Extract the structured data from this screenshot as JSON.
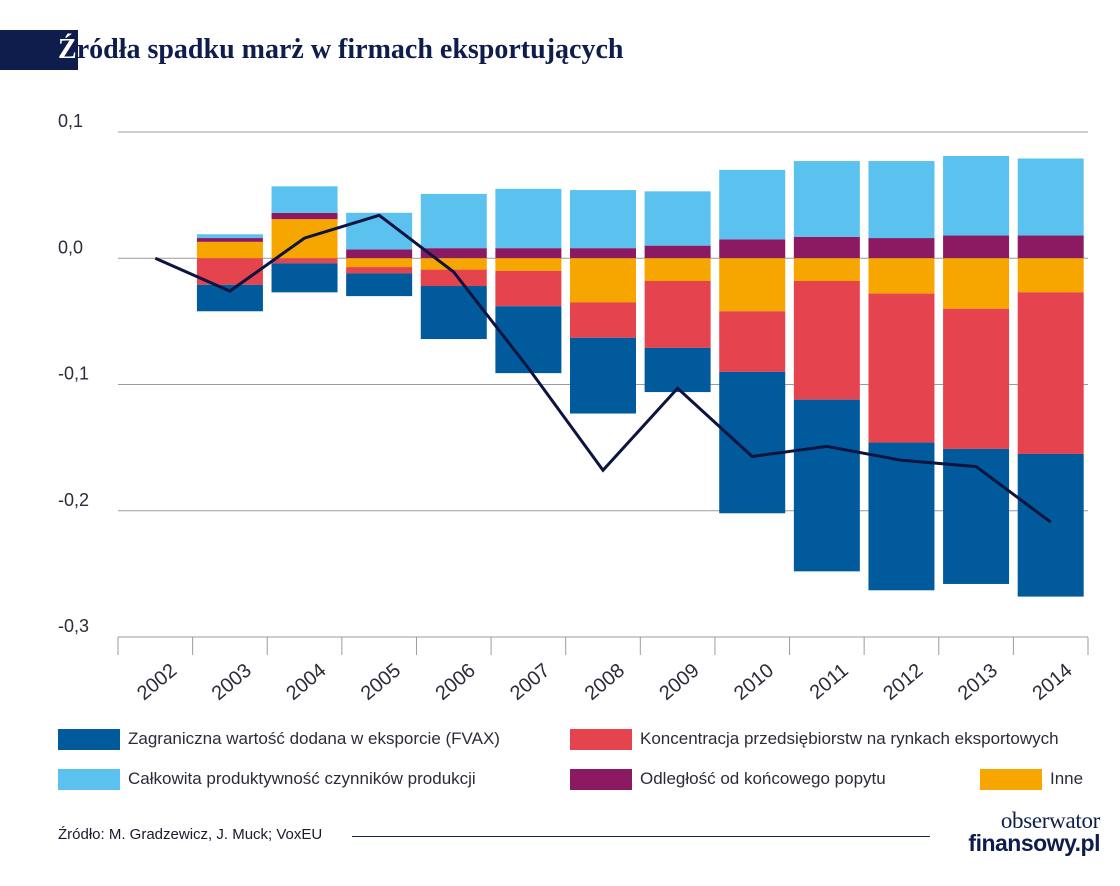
{
  "title": {
    "first_letter": "Ź",
    "rest": "ródła spadku marż w firmach eksportujących"
  },
  "chart_data": {
    "type": "bar",
    "stacked": true,
    "categories": [
      "2002",
      "2003",
      "2004",
      "2005",
      "2006",
      "2007",
      "2008",
      "2009",
      "2010",
      "2011",
      "2012",
      "2013",
      "2014"
    ],
    "y_ticks": [
      0.1,
      0.0,
      -0.1,
      -0.2,
      -0.3
    ],
    "y_tick_labels": [
      "0,1",
      "0,0",
      "-0,1",
      "-0,2",
      "-0,3"
    ],
    "ylim": [
      -0.3,
      0.1
    ],
    "grid": true,
    "series": [
      {
        "name": "Zagraniczna wartość dodana w eksporcie (FVAX)",
        "color": "#005a9c",
        "values": [
          0,
          -0.021,
          -0.023,
          -0.018,
          -0.042,
          -0.053,
          -0.06,
          -0.035,
          -0.112,
          -0.136,
          -0.117,
          -0.107,
          -0.113
        ]
      },
      {
        "name": "Koncentracja przedsiębiorstw na rynkach eksportowych",
        "color": "#e5434e",
        "values": [
          0,
          -0.021,
          -0.004,
          -0.005,
          -0.013,
          -0.028,
          -0.028,
          -0.053,
          -0.048,
          -0.094,
          -0.118,
          -0.111,
          -0.128
        ]
      },
      {
        "name": "Całkowita produktywność czynników produkcji",
        "color": "#5bc2f0",
        "values": [
          0,
          0.003,
          0.021,
          0.029,
          0.043,
          0.047,
          0.046,
          0.043,
          0.055,
          0.06,
          0.061,
          0.063,
          0.061
        ]
      },
      {
        "name": "Odległość od końcowego popytu",
        "color": "#8b1a62",
        "values": [
          0,
          0.003,
          0.005,
          0.007,
          0.008,
          0.008,
          0.008,
          0.01,
          0.015,
          0.017,
          0.016,
          0.018,
          0.018
        ]
      },
      {
        "name": "Inne",
        "color": "#f7a600",
        "values": [
          0,
          0.013,
          0.031,
          -0.007,
          -0.009,
          -0.01,
          -0.035,
          -0.018,
          -0.042,
          -0.018,
          -0.028,
          -0.04,
          -0.027
        ]
      }
    ],
    "line": {
      "color": "#0d1440",
      "values": [
        0.0,
        -0.026,
        0.016,
        0.034,
        -0.011,
        -0.087,
        -0.168,
        -0.103,
        -0.157,
        -0.149,
        -0.16,
        -0.165,
        -0.209
      ]
    }
  },
  "legend": [
    {
      "label": "Zagraniczna wartość dodana w eksporcie (FVAX)",
      "color": "#005a9c"
    },
    {
      "label": "Koncentracja przedsiębiorstw na rynkach eksportowych",
      "color": "#e5434e"
    },
    {
      "label": "Całkowita produktywność czynników produkcji",
      "color": "#5bc2f0"
    },
    {
      "label": "Odległość od końcowego popytu",
      "color": "#8b1a62"
    },
    {
      "label": "Inne",
      "color": "#f7a600"
    }
  ],
  "source": "Źródło:  M. Gradzewicz, J. Muck; VoxEU",
  "logo": {
    "line1": "obserwator",
    "line2": "finansowy.pl"
  }
}
